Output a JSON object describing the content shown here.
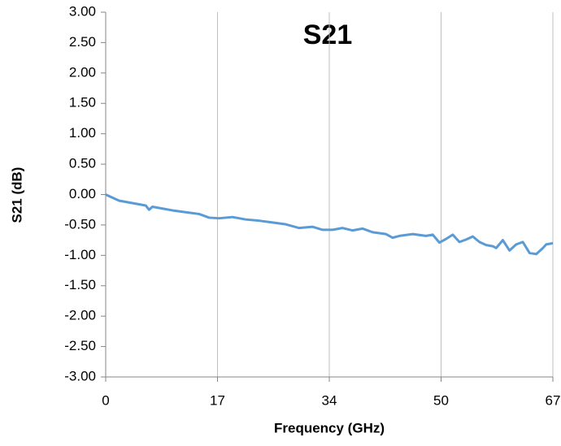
{
  "chart_data": {
    "type": "line",
    "title": "S21",
    "xlabel": "Frequency  (GHz)",
    "ylabel": "S21 (dB)",
    "x": [
      0,
      2,
      4,
      6,
      6.5,
      7,
      8,
      10,
      12,
      14,
      15.5,
      17,
      19,
      21,
      23,
      25,
      27,
      29,
      31,
      32.5,
      34,
      35.5,
      37,
      38.5,
      40,
      42,
      43,
      44,
      46,
      48,
      49,
      50,
      51,
      52,
      53,
      54,
      55,
      56,
      57,
      58,
      58.5,
      59.5,
      60.5,
      61.5,
      62.5,
      63.5,
      64.5,
      65.5,
      66,
      67
    ],
    "series": [
      {
        "name": "S21",
        "color": "#5b9bd5",
        "values": [
          0.0,
          -0.1,
          -0.14,
          -0.18,
          -0.25,
          -0.2,
          -0.22,
          -0.26,
          -0.29,
          -0.32,
          -0.38,
          -0.39,
          -0.37,
          -0.41,
          -0.43,
          -0.46,
          -0.49,
          -0.55,
          -0.53,
          -0.58,
          -0.58,
          -0.55,
          -0.59,
          -0.56,
          -0.62,
          -0.65,
          -0.71,
          -0.68,
          -0.65,
          -0.68,
          -0.66,
          -0.79,
          -0.73,
          -0.66,
          -0.78,
          -0.74,
          -0.69,
          -0.78,
          -0.83,
          -0.85,
          -0.88,
          -0.75,
          -0.92,
          -0.82,
          -0.78,
          -0.96,
          -0.98,
          -0.88,
          -0.82,
          -0.8
        ]
      }
    ],
    "xlim": [
      0,
      67
    ],
    "xticks": [
      0,
      {
        "value": 16.75,
        "label": "17"
      },
      {
        "value": 33.5,
        "label": "34"
      },
      {
        "value": 50.25,
        "label": "50"
      },
      67
    ],
    "ylim": [
      -3,
      3
    ],
    "yticks": [
      {
        "value": -3,
        "label": "-3.00"
      },
      {
        "value": -2.5,
        "label": "-2.50"
      },
      {
        "value": -2,
        "label": "-2.00"
      },
      {
        "value": -1.5,
        "label": "-1.50"
      },
      {
        "value": -1,
        "label": "-1.00"
      },
      {
        "value": -0.5,
        "label": "-0.50"
      },
      {
        "value": 0,
        "label": "0.00"
      },
      {
        "value": 0.5,
        "label": "0.50"
      },
      {
        "value": 1,
        "label": "1.00"
      },
      {
        "value": 1.5,
        "label": "1.50"
      },
      {
        "value": 2,
        "label": "2.00"
      },
      {
        "value": 2.5,
        "label": "2.50"
      },
      {
        "value": 3,
        "label": "3.00"
      }
    ],
    "grid": "x"
  }
}
